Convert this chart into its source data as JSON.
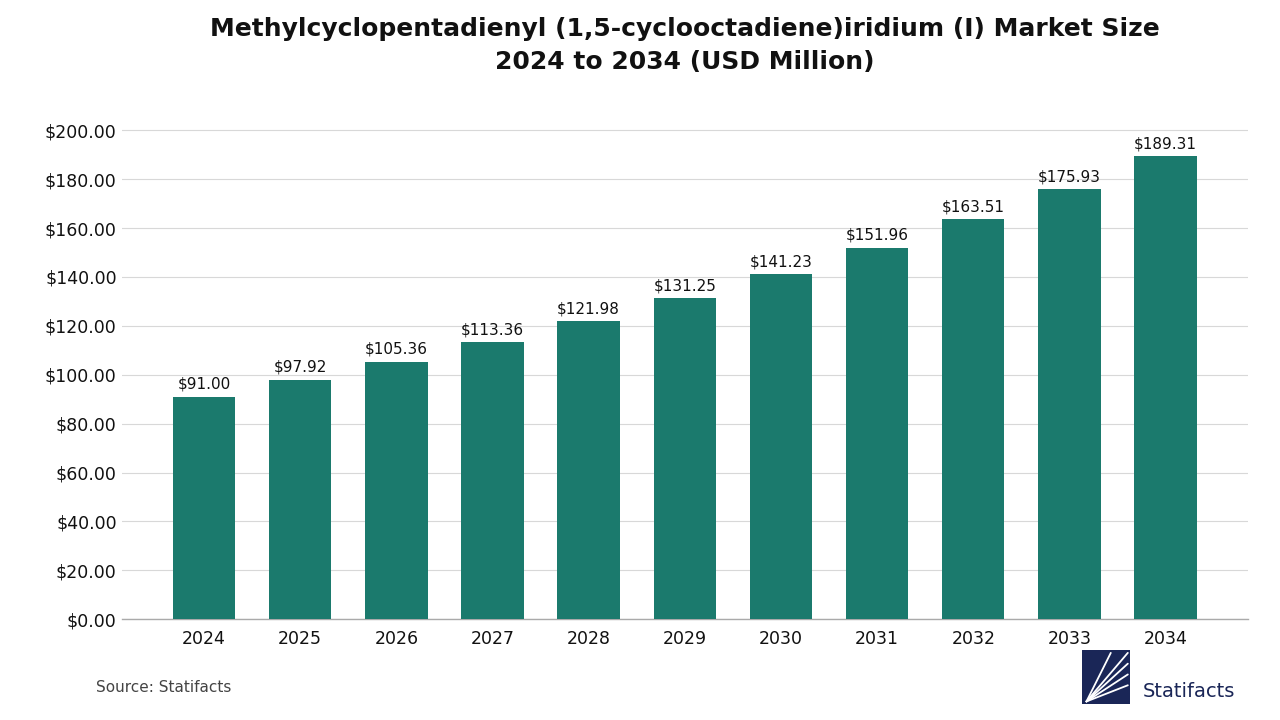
{
  "title_line1": "Methylcyclopentadienyl (1,5-cyclooctadiene)iridium (I) Market Size",
  "title_line2": "2024 to 2034 (USD Million)",
  "years": [
    2024,
    2025,
    2026,
    2027,
    2028,
    2029,
    2030,
    2031,
    2032,
    2033,
    2034
  ],
  "values": [
    91.0,
    97.92,
    105.36,
    113.36,
    121.98,
    131.25,
    141.23,
    151.96,
    163.51,
    175.93,
    189.31
  ],
  "bar_color": "#1b7a6d",
  "background_color": "#ffffff",
  "ytick_labels": [
    "$0.00",
    "$20.00",
    "$40.00",
    "$60.00",
    "$80.00",
    "$100.00",
    "$120.00",
    "$140.00",
    "$160.00",
    "$180.00",
    "$200.00"
  ],
  "ytick_values": [
    0,
    20,
    40,
    60,
    80,
    100,
    120,
    140,
    160,
    180,
    200
  ],
  "ylim": [
    0,
    215
  ],
  "grid_color": "#d8d8d8",
  "source_text": "Source: Statifacts",
  "label_fontsize": 11,
  "title_fontsize": 18,
  "tick_fontsize": 12.5,
  "source_fontsize": 11,
  "bar_label_color": "#111111",
  "axis_label_color": "#111111",
  "logo_text": "Statifacts",
  "logo_color": "#1a2657",
  "bar_width": 0.65
}
